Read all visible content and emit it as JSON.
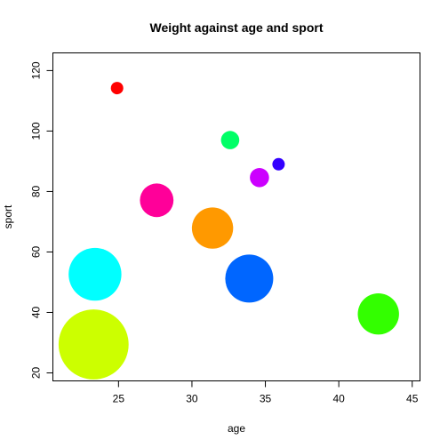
{
  "chart_data": {
    "type": "scatter",
    "title": "Weight against age and sport",
    "xlabel": "age",
    "ylabel": "sport",
    "xlim": [
      20.5,
      45.5
    ],
    "ylim": [
      17.5,
      126
    ],
    "xticks": [
      25,
      30,
      35,
      40,
      45
    ],
    "yticks": [
      20,
      40,
      60,
      80,
      100,
      120
    ],
    "grid": false,
    "legend": "none",
    "points": [
      {
        "x": 24.9,
        "y": 114.2,
        "size": 1.3,
        "color": "#FF0000"
      },
      {
        "x": 32.6,
        "y": 97.0,
        "size": 1.9,
        "color": "#00FF66"
      },
      {
        "x": 35.9,
        "y": 89.0,
        "size": 1.3,
        "color": "#3300FF"
      },
      {
        "x": 34.6,
        "y": 84.6,
        "size": 2.0,
        "color": "#CC00FF"
      },
      {
        "x": 27.6,
        "y": 77.1,
        "size": 3.5,
        "color": "#FF0099"
      },
      {
        "x": 31.4,
        "y": 67.9,
        "size": 4.3,
        "color": "#FF9900"
      },
      {
        "x": 23.4,
        "y": 52.6,
        "size": 5.5,
        "color": "#00FFFF"
      },
      {
        "x": 33.9,
        "y": 51.2,
        "size": 5.0,
        "color": "#0066FF"
      },
      {
        "x": 42.7,
        "y": 39.5,
        "size": 4.3,
        "color": "#33FF00"
      },
      {
        "x": 23.3,
        "y": 29.4,
        "size": 7.3,
        "color": "#CCFF00"
      }
    ]
  }
}
